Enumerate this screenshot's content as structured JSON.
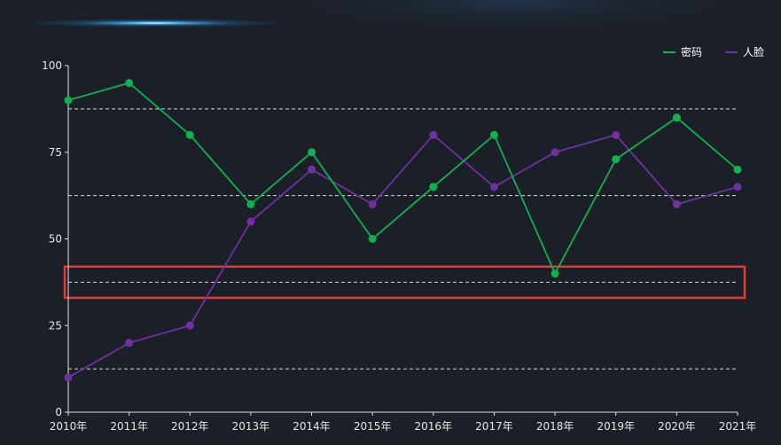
{
  "chart_data": {
    "type": "line",
    "title": "",
    "xlabel": "",
    "ylabel": "",
    "categories": [
      "2010年",
      "2011年",
      "2012年",
      "2013年",
      "2014年",
      "2015年",
      "2016年",
      "2017年",
      "2018年",
      "2019年",
      "2020年",
      "2021年"
    ],
    "ylim": [
      0,
      100
    ],
    "yticks": [
      "0",
      "25",
      "50",
      "75",
      "100"
    ],
    "grid": "dashed horizontal lines at 12.5, 37.5, 62.5, 87.5",
    "legend_position": "top-right",
    "series": [
      {
        "name": "密码",
        "color": "#0fb24d",
        "values": [
          90,
          95,
          80,
          60,
          75,
          50,
          65,
          80,
          40,
          73,
          85,
          70
        ]
      },
      {
        "name": "人脸",
        "color": "#7030a0",
        "values": [
          10,
          20,
          25,
          55,
          70,
          60,
          80,
          65,
          75,
          80,
          60,
          65
        ]
      }
    ],
    "highlight_band": {
      "range": [
        33,
        42
      ],
      "color": "#e53935"
    }
  }
}
